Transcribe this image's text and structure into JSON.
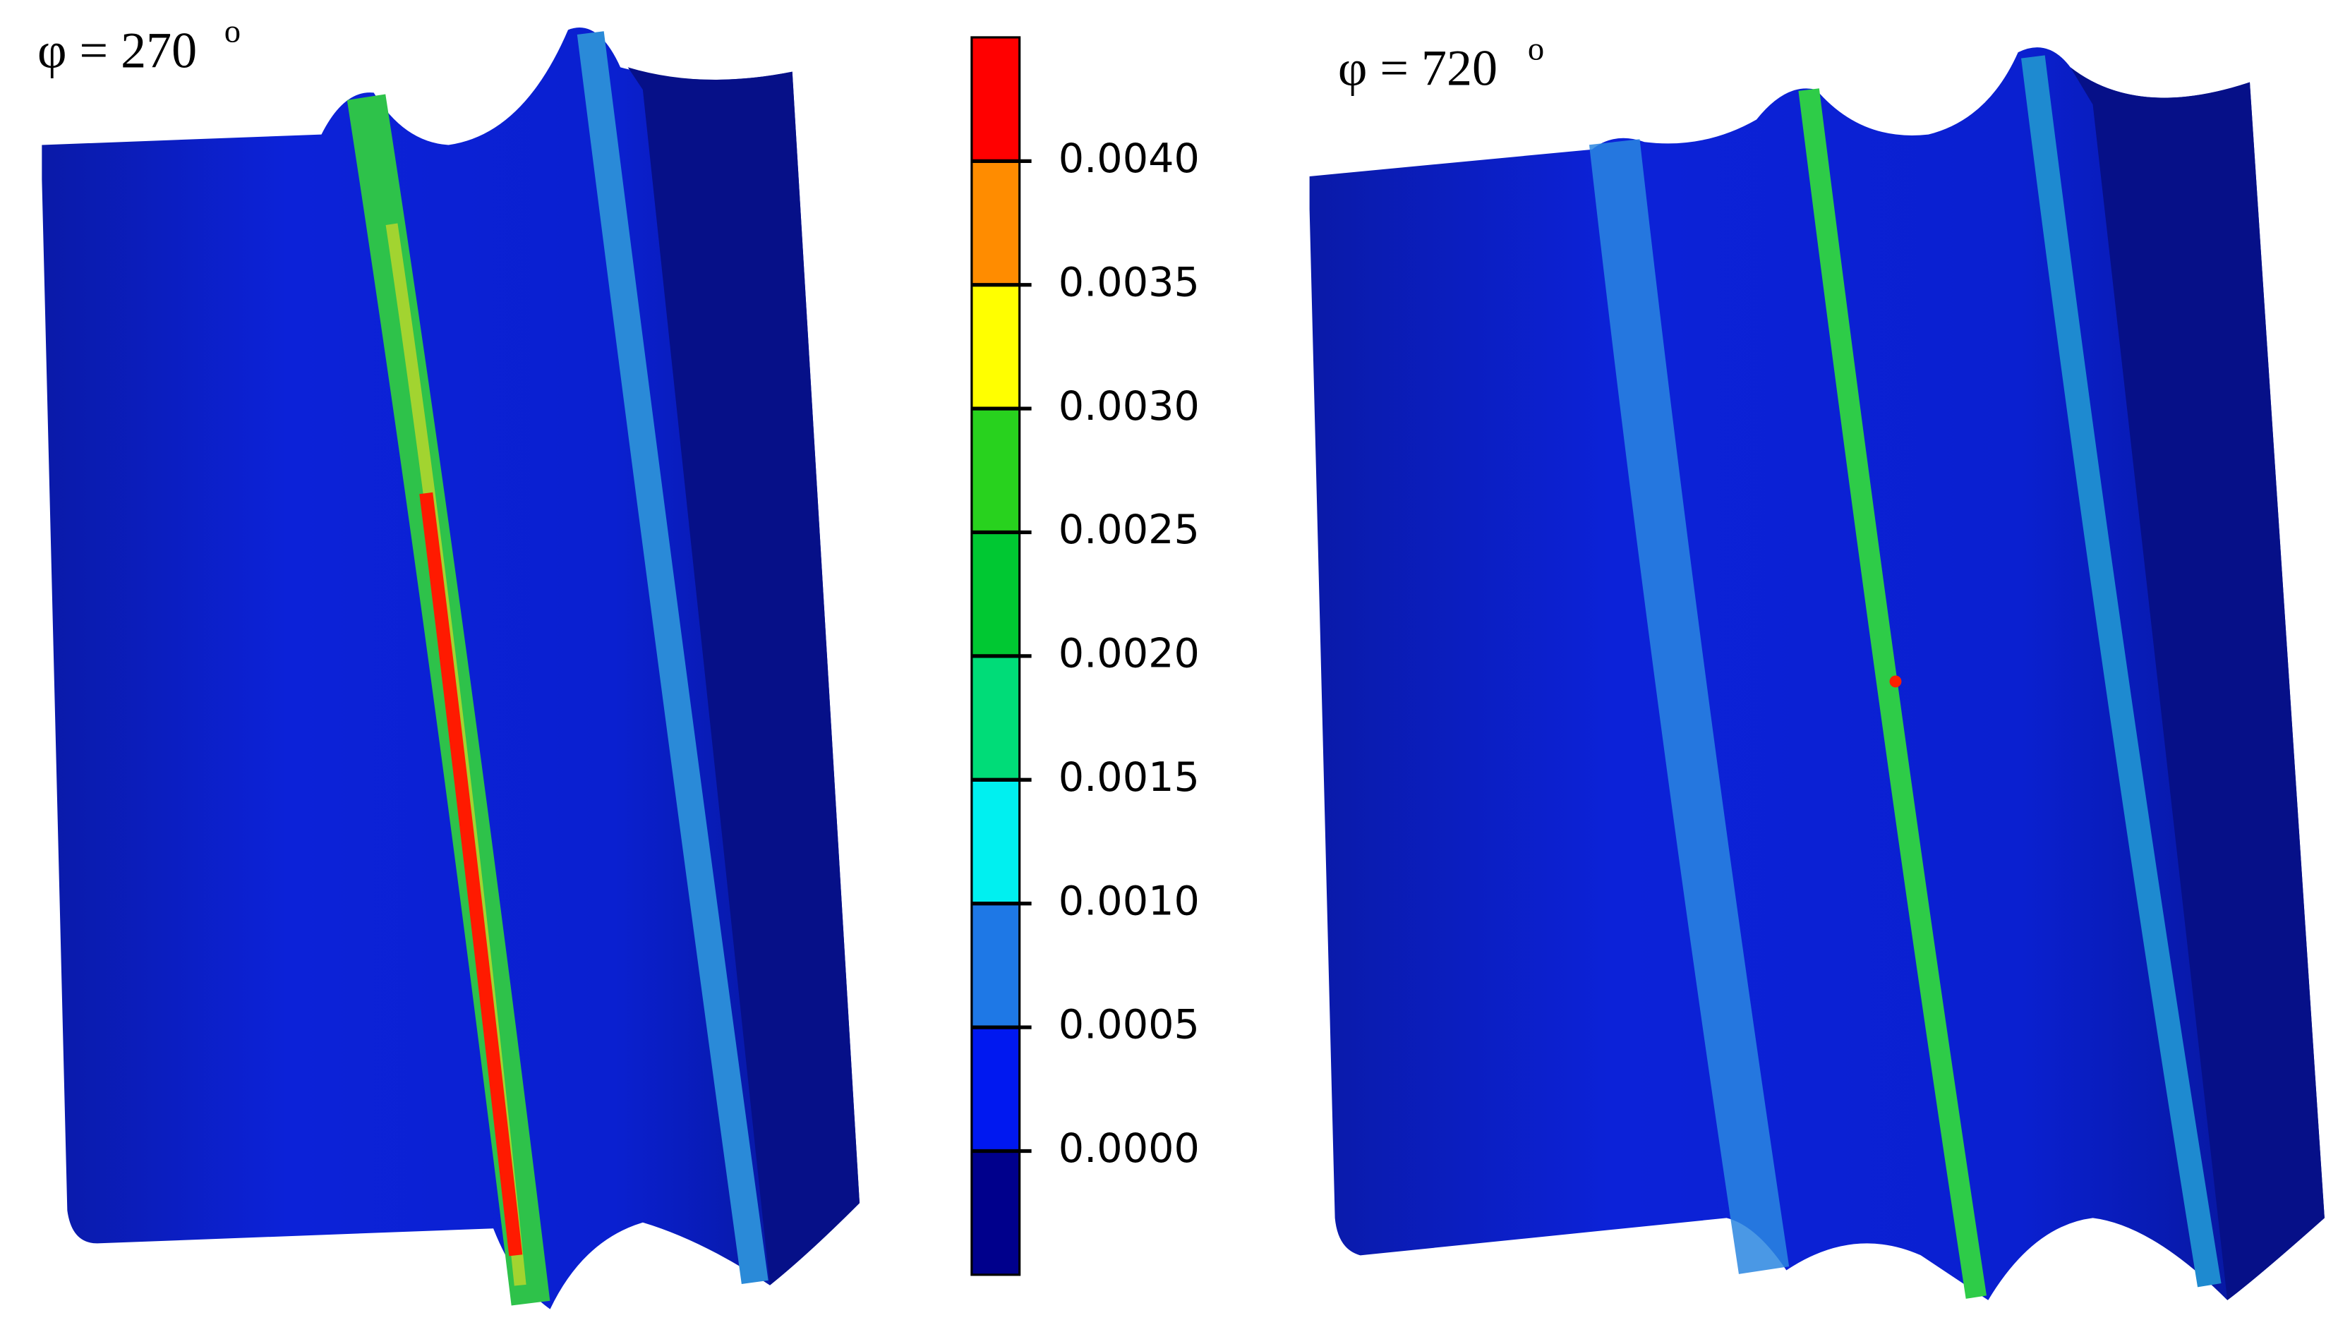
{
  "panels": [
    {
      "label": "φ = 270",
      "superscript": "o"
    },
    {
      "label": "φ = 720",
      "superscript": "o"
    }
  ],
  "colorbar": {
    "lim": [
      -0.0005,
      0.0045
    ],
    "ticks": [
      {
        "value": 0.0,
        "label": "0.0000"
      },
      {
        "value": 0.0005,
        "label": "0.0005"
      },
      {
        "value": 0.001,
        "label": "0.0010"
      },
      {
        "value": 0.0015,
        "label": "0.0015"
      },
      {
        "value": 0.002,
        "label": "0.0020"
      },
      {
        "value": 0.0025,
        "label": "0.0025"
      },
      {
        "value": 0.003,
        "label": "0.0030"
      },
      {
        "value": 0.0035,
        "label": "0.0035"
      },
      {
        "value": 0.004,
        "label": "0.0040"
      }
    ],
    "colors": [
      "#00008c",
      "#0018f0",
      "#1e78e6",
      "#00f0f0",
      "#00dc78",
      "#00c832",
      "#28d21e",
      "#ffff00",
      "#ff8c00",
      "#ff0000"
    ]
  }
}
